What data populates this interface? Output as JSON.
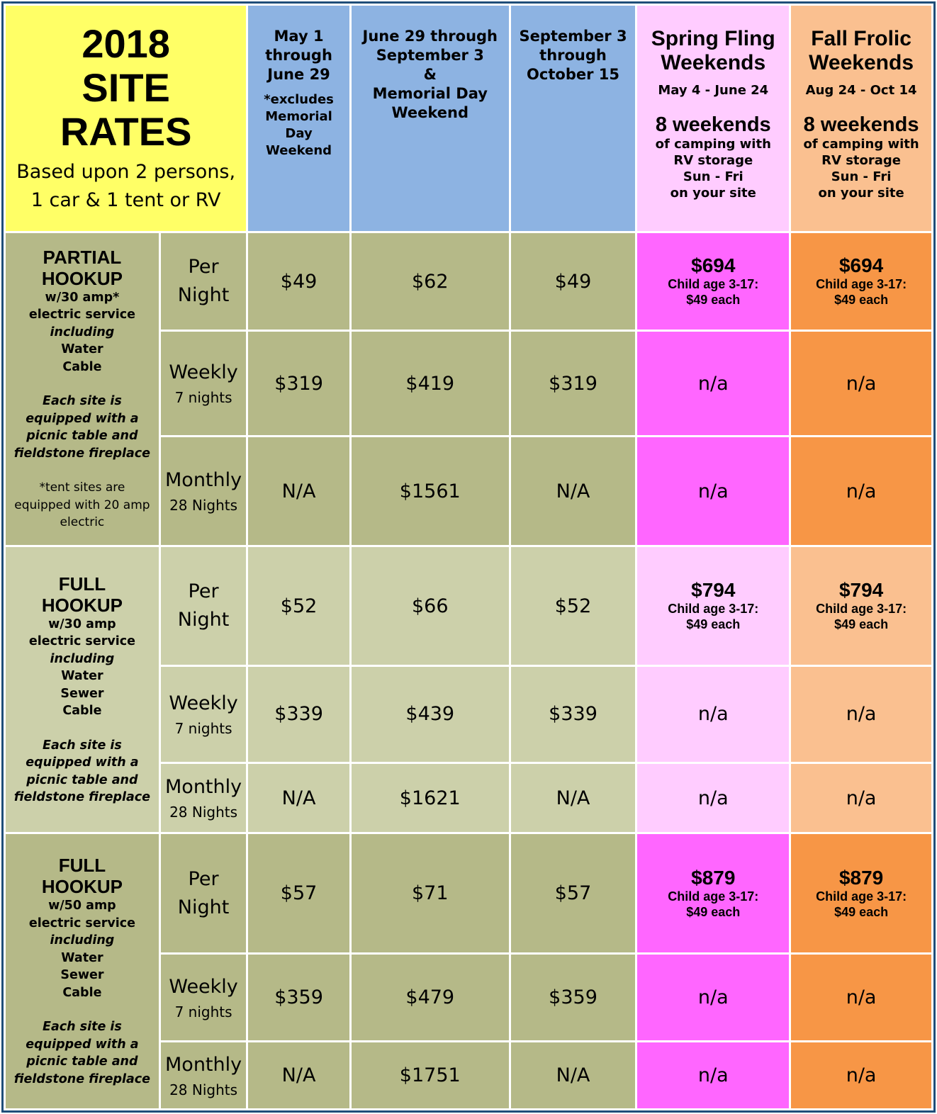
{
  "header": {
    "title_lines": [
      "2018",
      "SITE",
      "RATES"
    ],
    "basis_lines": [
      "Based upon 2 persons,",
      "1 car & 1 tent or RV"
    ],
    "periods": [
      {
        "lines": [
          "May 1",
          "through",
          "June 29"
        ],
        "note_lines": [
          "*excludes",
          "Memorial",
          "Day",
          "Weekend"
        ]
      },
      {
        "lines": [
          "June 29 through",
          "September 3",
          "&",
          "Memorial Day",
          "Weekend"
        ]
      },
      {
        "lines": [
          "September 3",
          "through",
          "October 15"
        ]
      }
    ],
    "weekends": [
      {
        "name_lines": [
          "Spring Fling",
          "Weekends"
        ],
        "dates": "May 4 - June 24",
        "count": "8 weekends",
        "desc_lines": [
          "of camping with",
          "RV storage",
          "Sun - Fri",
          "on your site"
        ]
      },
      {
        "name_lines": [
          "Fall Frolic",
          "Weekends"
        ],
        "dates": "Aug 24 - Oct 14",
        "count": "8 weekends",
        "desc_lines": [
          "of camping with",
          "RV storage",
          "Sun - Fri",
          "on your site"
        ]
      }
    ]
  },
  "sites": [
    {
      "name_lines": [
        "PARTIAL",
        "HOOKUP"
      ],
      "service_lines": [
        "w/30 amp*",
        "electric service"
      ],
      "including": "including",
      "utilities": [
        "Water",
        "Cable"
      ],
      "equip_lines": [
        "Each site is",
        "equipped with a",
        "picnic table and",
        "fieldstone fireplace"
      ],
      "note_lines": [
        "*tent sites are",
        "equipped with 20 amp",
        "electric"
      ],
      "rows": [
        {
          "period": "Per Night",
          "sub": "",
          "prices": [
            "$49",
            "$62",
            "$49"
          ],
          "spring": "$694",
          "fall": "$694",
          "child": [
            "Child age 3-17:",
            "$49 each"
          ]
        },
        {
          "period": "Weekly",
          "sub": "7 nights",
          "prices": [
            "$319",
            "$419",
            "$319"
          ],
          "spring": "n/a",
          "fall": "n/a"
        },
        {
          "period": "Monthly",
          "sub": "28 Nights",
          "prices": [
            "N/A",
            "$1561",
            "N/A"
          ],
          "spring": "n/a",
          "fall": "n/a"
        }
      ]
    },
    {
      "name_lines": [
        "FULL",
        "HOOKUP"
      ],
      "service_lines": [
        "w/30 amp",
        "electric service"
      ],
      "including": "including",
      "utilities": [
        "Water",
        "Sewer",
        "Cable"
      ],
      "equip_lines": [
        "Each site is",
        "equipped with a",
        "picnic table and",
        "fieldstone fireplace"
      ],
      "rows": [
        {
          "period": "Per Night",
          "sub": "",
          "prices": [
            "$52",
            "$66",
            "$52"
          ],
          "spring": "$794",
          "fall": "$794",
          "child": [
            "Child age 3-17:",
            "$49 each"
          ]
        },
        {
          "period": "Weekly",
          "sub": "7 nights",
          "prices": [
            "$339",
            "$439",
            "$339"
          ],
          "spring": "n/a",
          "fall": "n/a"
        },
        {
          "period": "Monthly",
          "sub": "28 Nights",
          "prices": [
            "N/A",
            "$1621",
            "N/A"
          ],
          "spring": "n/a",
          "fall": "n/a"
        }
      ]
    },
    {
      "name_lines": [
        "FULL",
        "HOOKUP"
      ],
      "service_lines": [
        "w/50 amp",
        "electric service"
      ],
      "including": "including",
      "utilities": [
        "Water",
        "Sewer",
        "Cable"
      ],
      "equip_lines": [
        "Each site is",
        "equipped with a",
        "picnic table and",
        "fieldstone fireplace"
      ],
      "rows": [
        {
          "period": "Per Night",
          "sub": "",
          "prices": [
            "$57",
            "$71",
            "$57"
          ],
          "spring": "$879",
          "fall": "$879",
          "child": [
            "Child age 3-17:",
            "$49 each"
          ]
        },
        {
          "period": "Weekly",
          "sub": "7 nights",
          "prices": [
            "$359",
            "$479",
            "$359"
          ],
          "spring": "n/a",
          "fall": "n/a"
        },
        {
          "period": "Monthly",
          "sub": "28 Nights",
          "prices": [
            "N/A",
            "$1751",
            "N/A"
          ],
          "spring": "n/a",
          "fall": "n/a"
        }
      ]
    }
  ],
  "colors": {
    "title_bg": "#ffff66",
    "period_bg": "#8db3e2",
    "spring_light": "#ffccff",
    "spring_strong": "#ff66ff",
    "fall_light": "#fac090",
    "fall_strong": "#f79646",
    "olive_dark": "#b5b988",
    "olive_light": "#ccd0aa",
    "border": "#1f4e79"
  }
}
